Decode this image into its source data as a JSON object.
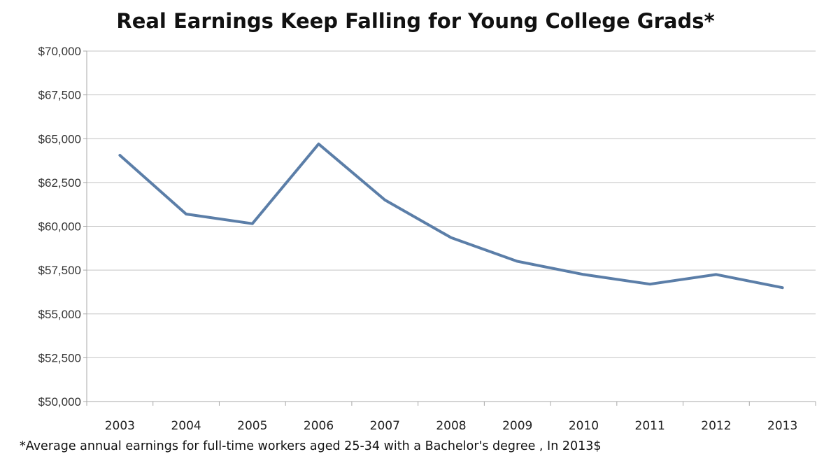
{
  "chart_data": {
    "type": "line",
    "title": "Real Earnings Keep Falling for Young College Grads*",
    "footnote": "*Average annual earnings for full-time workers aged 25-34 with a Bachelor's degree , In 2013$",
    "xlabel": "",
    "ylabel": "",
    "x": [
      "2003",
      "2004",
      "2005",
      "2006",
      "2007",
      "2008",
      "2009",
      "2010",
      "2011",
      "2012",
      "2013"
    ],
    "series": [
      {
        "values": [
          64050,
          60700,
          60150,
          64700,
          61500,
          59350,
          58000,
          57250,
          56700,
          57250,
          56500
        ]
      }
    ],
    "ylim": [
      50000,
      70000
    ],
    "yticks": [
      70000,
      67500,
      65000,
      62500,
      60000,
      57500,
      55000,
      52500,
      50000
    ],
    "ytick_labels": [
      "$70,000",
      "$67,500",
      "$65,000",
      "$62,500",
      "$60,000",
      "$57,500",
      "$55,000",
      "$52,500",
      "$50,000"
    ],
    "grid": true,
    "legend": "none",
    "colors": {
      "line": "#5b7ea8",
      "grid": "#c4c4c4",
      "axis": "#a8a8a8"
    }
  }
}
